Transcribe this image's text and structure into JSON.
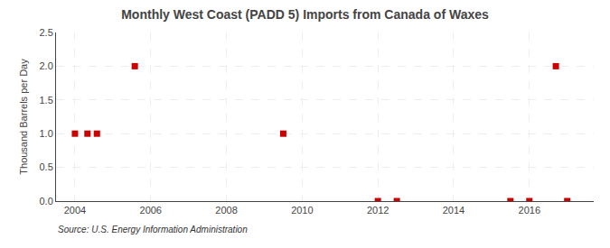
{
  "chart_data": {
    "type": "scatter",
    "title": "Monthly West Coast (PADD 5) Imports from Canada of Waxes",
    "ylabel": "Thousand Barrels per Day",
    "annotations": [
      "Source: U.S. Energy Information Administration"
    ],
    "x": [
      2004.0,
      2004.33,
      2004.58,
      2005.58,
      2009.5,
      2012.0,
      2012.5,
      2015.5,
      2016.0,
      2016.7,
      2017.0
    ],
    "values": [
      1.0,
      1.0,
      1.0,
      2.0,
      1.0,
      0.0,
      0.0,
      0.0,
      0.0,
      2.0,
      0.0
    ],
    "color": "#cc0000",
    "marker": "square",
    "xlim": [
      2003.5,
      2017.7
    ],
    "ylim": [
      0.0,
      2.5
    ],
    "xticks": [
      2004,
      2006,
      2008,
      2010,
      2012,
      2014,
      2016
    ],
    "yticks": [
      {
        "value": 0.0,
        "label": "0.0"
      },
      0.5,
      {
        "value": 1.0,
        "label": "1.0"
      },
      1.5,
      {
        "value": 2.0,
        "label": "2.0"
      },
      2.5
    ],
    "grid": true
  }
}
